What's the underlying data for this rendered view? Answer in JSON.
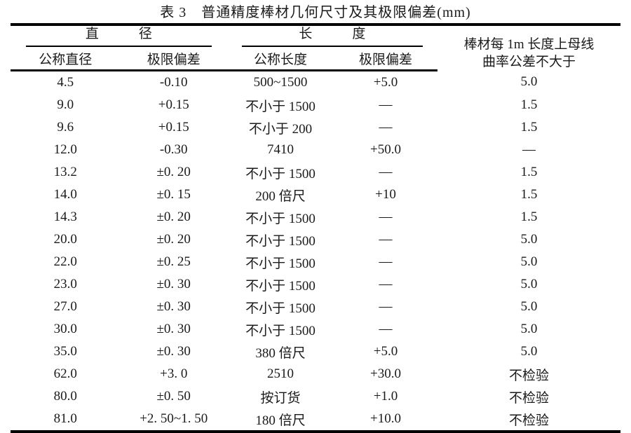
{
  "title": "表 3　普通精度棒材几何尺寸及其极限偏差(mm)",
  "colors": {
    "ink": "#1a1a1a",
    "rule": "#000000",
    "background": "#ffffff"
  },
  "table": {
    "groups": [
      {
        "label": "直　　　径"
      },
      {
        "label": "长　　　度"
      }
    ],
    "curvature_header": {
      "line1": "棒材每 1m 长度上母线",
      "line2": "曲率公差不大于"
    },
    "subheaders": [
      "公称直径",
      "极限偏差",
      "公称长度",
      "极限偏差"
    ],
    "cell_names": [
      "nominal-diameter",
      "diameter-deviation",
      "nominal-length",
      "length-deviation",
      "curvature-tolerance"
    ],
    "rows": [
      [
        "4.5",
        "-0.10",
        "500~1500",
        "+5.0",
        "5.0"
      ],
      [
        "9.0",
        "+0.15",
        "不小于 1500",
        "—",
        "1.5"
      ],
      [
        "9.6",
        "+0.15",
        "不小于 200",
        "—",
        "1.5"
      ],
      [
        "12.0",
        "-0.30",
        "7410",
        "+50.0",
        "—"
      ],
      [
        "13.2",
        "±0. 20",
        "不小于 1500",
        "—",
        "1.5"
      ],
      [
        "14.0",
        "±0. 15",
        "200 倍尺",
        "+10",
        "1.5"
      ],
      [
        "14.3",
        "±0. 20",
        "不小于 1500",
        "—",
        "1.5"
      ],
      [
        "20.0",
        "±0. 20",
        "不小于 1500",
        "—",
        "5.0"
      ],
      [
        "22.0",
        "±0. 25",
        "不小于 1500",
        "—",
        "5.0"
      ],
      [
        "23.0",
        "±0. 30",
        "不小于 1500",
        "—",
        "5.0"
      ],
      [
        "27.0",
        "±0. 30",
        "不小于 1500",
        "—",
        "5.0"
      ],
      [
        "30.0",
        "±0. 30",
        "不小于 1500",
        "—",
        "5.0"
      ],
      [
        "35.0",
        "±0. 30",
        "380 倍尺",
        "+5.0",
        "5.0"
      ],
      [
        "62.0",
        "+3. 0",
        "2510",
        "+30.0",
        "不检验"
      ],
      [
        "80.0",
        "±0. 50",
        "按订货",
        "+1.0",
        "不检验"
      ],
      [
        "81.0",
        "+2. 50~1. 50",
        "180 倍尺",
        "+10.0",
        "不检验"
      ]
    ]
  }
}
